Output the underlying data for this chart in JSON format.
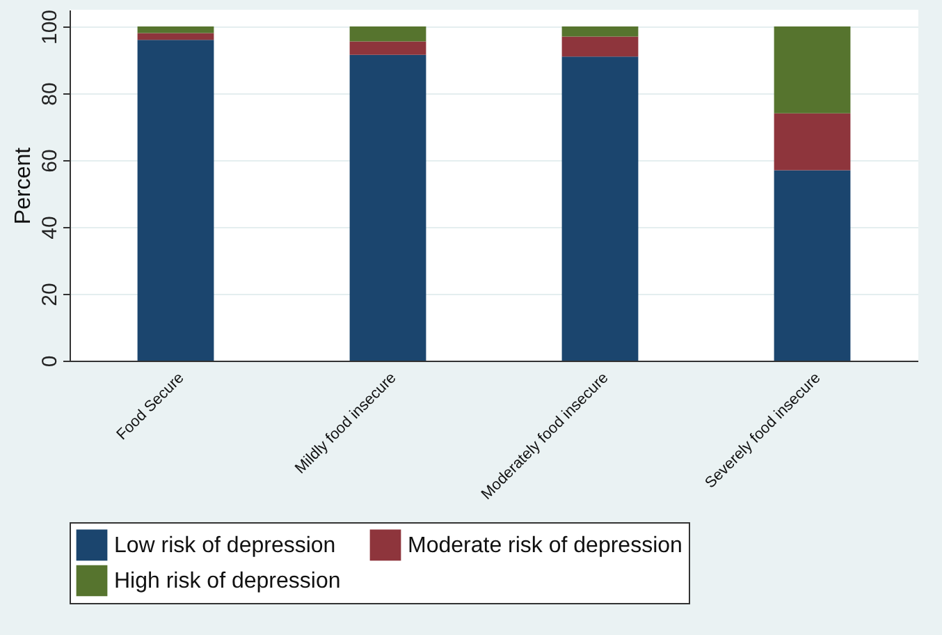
{
  "chart_data": {
    "type": "bar",
    "stacked": true,
    "ylabel": "Percent",
    "categories": [
      "Food Secure",
      "Mildly food insecure",
      "Moderately food insecure",
      "Severely food insecure"
    ],
    "series": [
      {
        "name": "Low risk of depression",
        "color": "#1b456e",
        "values": [
          96,
          91.5,
          91,
          57
        ]
      },
      {
        "name": "Moderate risk of depression",
        "color": "#8e353c",
        "values": [
          2,
          4,
          6,
          17
        ]
      },
      {
        "name": "High risk of depression",
        "color": "#56742e",
        "values": [
          2,
          4.5,
          3,
          26
        ]
      }
    ],
    "ylim": [
      0,
      105
    ],
    "yticks": [
      0,
      20,
      40,
      60,
      80,
      100
    ],
    "grid": "y",
    "legend": "bottom"
  }
}
